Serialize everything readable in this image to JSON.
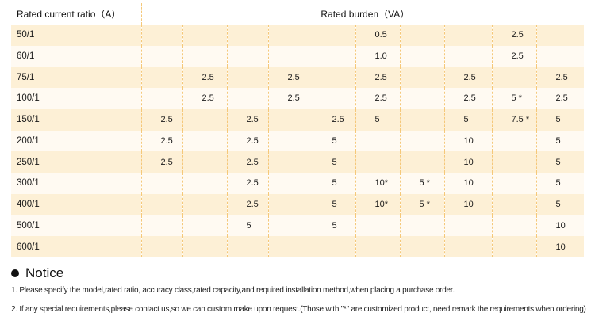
{
  "table": {
    "header_ratio": "Rated current ratio（A）",
    "header_burden": "Rated burden（VA）",
    "rows": [
      {
        "ratio": "50/1",
        "values": [
          "",
          "",
          "",
          "",
          "",
          "0.5",
          "",
          "",
          "2.5",
          ""
        ]
      },
      {
        "ratio": "60/1",
        "values": [
          "",
          "",
          "",
          "",
          "",
          "1.0",
          "",
          "",
          "2.5",
          ""
        ]
      },
      {
        "ratio": "75/1",
        "values": [
          "",
          "2.5",
          "",
          "2.5",
          "",
          "2.5",
          "",
          "2.5",
          "",
          "2.5"
        ]
      },
      {
        "ratio": "100/1",
        "values": [
          "",
          "2.5",
          "",
          "2.5",
          "",
          "2.5",
          "",
          "2.5",
          "5 *",
          "2.5"
        ]
      },
      {
        "ratio": "150/1",
        "values": [
          "2.5",
          "",
          "2.5",
          "",
          "2.5",
          "5",
          "",
          "5",
          "7.5 *",
          "5"
        ]
      },
      {
        "ratio": "200/1",
        "values": [
          "2.5",
          "",
          "2.5",
          "",
          "5",
          "",
          "",
          "10",
          "",
          "5"
        ]
      },
      {
        "ratio": "250/1",
        "values": [
          "2.5",
          "",
          "2.5",
          "",
          "5",
          "",
          "",
          "10",
          "",
          "5"
        ]
      },
      {
        "ratio": "300/1",
        "values": [
          "",
          "",
          "2.5",
          "",
          "5",
          "10*",
          "5 *",
          "10",
          "",
          "5"
        ]
      },
      {
        "ratio": "400/1",
        "values": [
          "",
          "",
          "2.5",
          "",
          "5",
          "10*",
          "5 *",
          "10",
          "",
          "5"
        ]
      },
      {
        "ratio": "500/1",
        "values": [
          "",
          "",
          "5",
          "",
          "5",
          "",
          "",
          "",
          "",
          "10"
        ]
      },
      {
        "ratio": "600/1",
        "values": [
          "",
          "",
          "",
          "",
          "",
          "",
          "",
          "",
          "",
          "10"
        ]
      }
    ]
  },
  "notice": {
    "title": "Notice",
    "line1": "1. Please specify the model,rated ratio, accuracy class,rated capacity,and required installation method,when placing a purchase order.",
    "line2": "2. If any special requirements,please contact us,so we can custom make upon request.(Those with \"*\" are customized product, need remark the requirements when ordering)"
  }
}
